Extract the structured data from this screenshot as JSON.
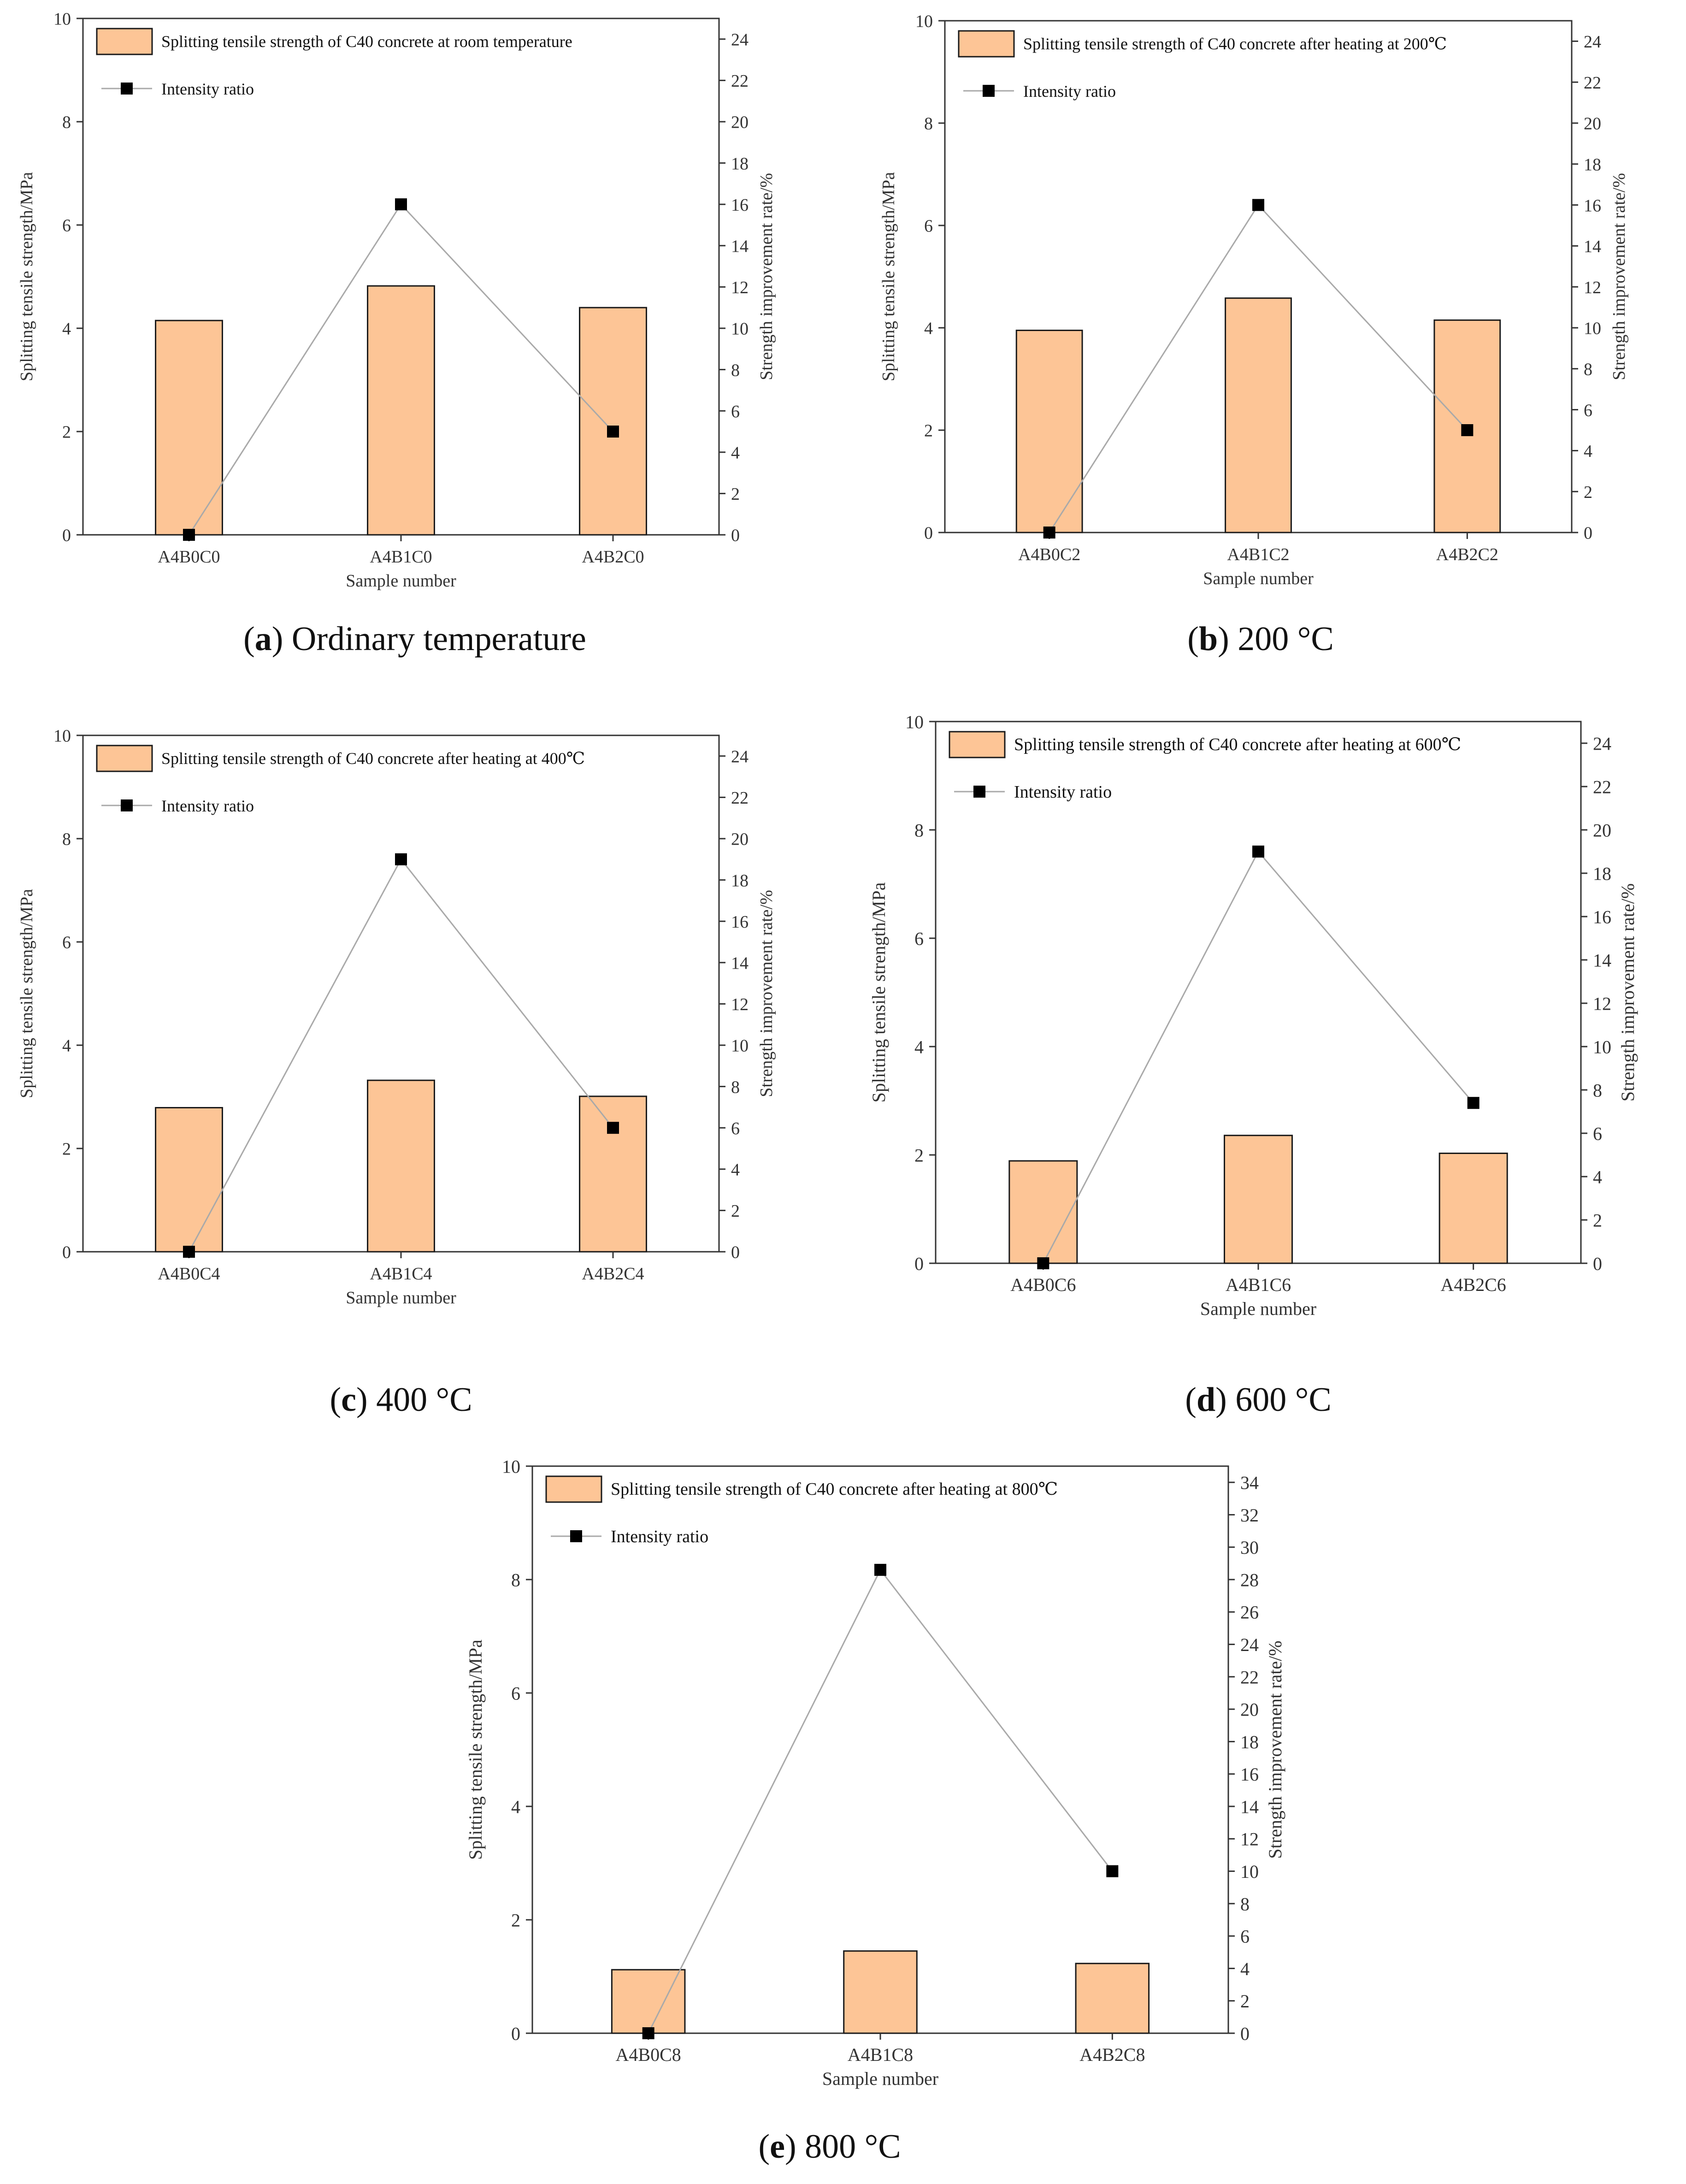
{
  "colors": {
    "bar_fill": "#FDC596",
    "bar_stroke": "#1a1a1a",
    "axis": "#333333",
    "line": "#a9a9a9",
    "marker": "#000000"
  },
  "chart_data": [
    {
      "id": "a",
      "type": "bar+line",
      "caption_letter": "a",
      "caption_text": " Ordinary temperature",
      "categories": [
        "A4B0C0",
        "A4B1C0",
        "A4B2C0"
      ],
      "bar_values": [
        4.15,
        4.82,
        4.4
      ],
      "ratio_values": [
        0,
        16,
        5
      ],
      "legend_bar": "Splitting tensile strength of C40 concrete at room temperature",
      "legend_line": "Intensity ratio",
      "xlabel": "Sample number",
      "ylabel_left": "Splitting tensile strength/MPa",
      "ylabel_right": "Strength improvement rate/%",
      "ylim_left": [
        0,
        10
      ],
      "left_ticks": [
        "0",
        "2",
        "4",
        "6",
        "8",
        "10"
      ],
      "ylim_right": [
        0,
        25
      ],
      "right_ticks": [
        "0",
        "2",
        "4",
        "6",
        "8",
        "10",
        "12",
        "14",
        "16",
        "18",
        "20",
        "22",
        "24"
      ]
    },
    {
      "id": "b",
      "type": "bar+line",
      "caption_letter": "b",
      "caption_text": " 200 °C",
      "categories": [
        "A4B0C2",
        "A4B1C2",
        "A4B2C2"
      ],
      "bar_values": [
        3.95,
        4.58,
        4.15
      ],
      "ratio_values": [
        0,
        16,
        5
      ],
      "legend_bar": "Splitting tensile strength of C40 concrete after heating at 200℃",
      "legend_line": "Intensity ratio",
      "xlabel": "Sample number",
      "ylabel_left": "Splitting tensile strength/MPa",
      "ylabel_right": "Strength improvement rate/%",
      "ylim_left": [
        0,
        10
      ],
      "left_ticks": [
        "0",
        "2",
        "4",
        "6",
        "8",
        "10"
      ],
      "ylim_right": [
        0,
        25
      ],
      "right_ticks": [
        "0",
        "2",
        "4",
        "6",
        "8",
        "10",
        "12",
        "14",
        "16",
        "18",
        "20",
        "22",
        "24"
      ]
    },
    {
      "id": "c",
      "type": "bar+line",
      "caption_letter": "c",
      "caption_text": " 400 °C",
      "categories": [
        "A4B0C4",
        "A4B1C4",
        "A4B2C4"
      ],
      "bar_values": [
        2.79,
        3.32,
        3.01
      ],
      "ratio_values": [
        0,
        19,
        6
      ],
      "legend_bar": "Splitting tensile strength of C40 concrete after heating at 400℃",
      "legend_line": "Intensity ratio",
      "xlabel": "Sample number",
      "ylabel_left": "Splitting tensile strength/MPa",
      "ylabel_right": "Strength improvement rate/%",
      "ylim_left": [
        0,
        10
      ],
      "left_ticks": [
        "0",
        "2",
        "4",
        "6",
        "8",
        "10"
      ],
      "ylim_right": [
        0,
        25
      ],
      "right_ticks": [
        "0",
        "2",
        "4",
        "6",
        "8",
        "10",
        "12",
        "14",
        "16",
        "18",
        "20",
        "22",
        "24"
      ]
    },
    {
      "id": "d",
      "type": "bar+line",
      "caption_letter": "d",
      "caption_text": " 600 °C",
      "categories": [
        "A4B0C6",
        "A4B1C6",
        "A4B2C6"
      ],
      "bar_values": [
        1.89,
        2.36,
        2.03
      ],
      "ratio_values": [
        0,
        19,
        7.4
      ],
      "legend_bar": "Splitting tensile strength of C40 concrete after heating at 600℃",
      "legend_line": "Intensity ratio",
      "xlabel": "Sample number",
      "ylabel_left": "Splitting tensile strength/MPa",
      "ylabel_right": "Strength improvement rate/%",
      "ylim_left": [
        0,
        10
      ],
      "left_ticks": [
        "0",
        "2",
        "4",
        "6",
        "8",
        "10"
      ],
      "ylim_right": [
        0,
        25
      ],
      "right_ticks": [
        "0",
        "2",
        "4",
        "6",
        "8",
        "10",
        "12",
        "14",
        "16",
        "18",
        "20",
        "22",
        "24"
      ]
    },
    {
      "id": "e",
      "type": "bar+line",
      "caption_letter": "e",
      "caption_text": " 800 °C",
      "categories": [
        "A4B0C8",
        "A4B1C8",
        "A4B2C8"
      ],
      "bar_values": [
        1.12,
        1.45,
        1.23
      ],
      "ratio_values": [
        0,
        28.6,
        10
      ],
      "legend_bar": "Splitting tensile strength of C40 concrete after heating at 800℃",
      "legend_line": "Intensity ratio",
      "xlabel": "Sample number",
      "ylabel_left": "Splitting tensile strength/MPa",
      "ylabel_right": "Strength improvement rate/%",
      "ylim_left": [
        0,
        10
      ],
      "left_ticks": [
        "0",
        "2",
        "4",
        "6",
        "8",
        "10"
      ],
      "ylim_right": [
        0,
        35
      ],
      "right_ticks": [
        "0",
        "2",
        "4",
        "6",
        "8",
        "10",
        "12",
        "14",
        "16",
        "18",
        "20",
        "22",
        "24",
        "26",
        "28",
        "30",
        "32",
        "34"
      ]
    }
  ]
}
